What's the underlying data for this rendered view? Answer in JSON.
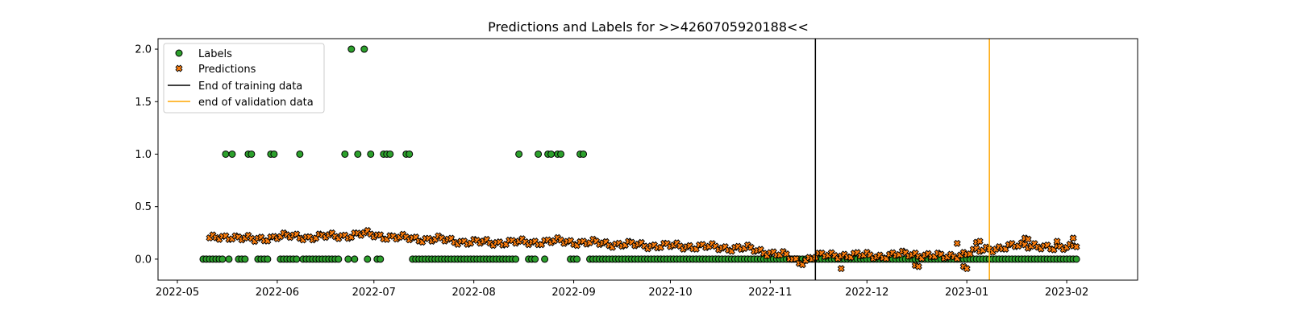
{
  "chart_data": {
    "type": "scatter",
    "title": "Predictions and Labels for >>4260705920188<<",
    "xlabel": "",
    "ylabel": "",
    "x_domain": [
      "2022-04-25",
      "2023-02-23"
    ],
    "ylim": [
      -0.2,
      2.1
    ],
    "x_ticks": [
      "2022-05",
      "2022-06",
      "2022-07",
      "2022-08",
      "2022-09",
      "2022-10",
      "2022-11",
      "2022-12",
      "2023-01",
      "2023-02"
    ],
    "x_tick_dates": [
      "2022-05-01",
      "2022-06-01",
      "2022-07-01",
      "2022-08-01",
      "2022-09-01",
      "2022-10-01",
      "2022-11-01",
      "2022-12-01",
      "2023-01-01",
      "2023-02-01"
    ],
    "y_ticks": [
      "0.0",
      "0.5",
      "1.0",
      "1.5",
      "2.0"
    ],
    "y_tick_values": [
      0.0,
      0.5,
      1.0,
      1.5,
      2.0
    ],
    "grid": false,
    "legend_position": "top-left",
    "colors": {
      "labels_fill": "#2ca02c",
      "predictions_fill": "#ff7f0e",
      "edge": "#000000",
      "training_line": "#000000",
      "validation_line": "#ffa500"
    },
    "legend": [
      {
        "label": "Labels",
        "kind": "circle"
      },
      {
        "label": "Predictions",
        "kind": "cross"
      },
      {
        "label": "End of training data",
        "kind": "line",
        "color": "#000000"
      },
      {
        "label": "end of validation data",
        "kind": "line",
        "color": "#ffa500"
      }
    ],
    "vlines": [
      {
        "label": "End of training data",
        "date": "2022-11-15"
      },
      {
        "label": "end of validation data",
        "date": "2023-01-08"
      }
    ],
    "series": [
      {
        "name": "Labels",
        "marker": "circle",
        "date_range": [
          "2022-05-09",
          "2023-02-04"
        ],
        "default_value": 0,
        "exceptions": [
          {
            "date": "2022-05-16",
            "value": 1
          },
          {
            "date": "2022-05-17",
            "value": 0
          },
          {
            "date": "2022-05-18",
            "value": 1
          },
          {
            "date": "2022-05-19",
            "value": null
          },
          {
            "date": "2022-05-23",
            "value": 1
          },
          {
            "date": "2022-05-24",
            "value": 1
          },
          {
            "date": "2022-05-25",
            "value": null
          },
          {
            "date": "2022-05-30",
            "value": 1
          },
          {
            "date": "2022-05-31",
            "value": 1
          },
          {
            "date": "2022-06-08",
            "value": 1
          },
          {
            "date": "2022-06-22",
            "value": 1
          },
          {
            "date": "2022-06-24",
            "value": 2
          },
          {
            "date": "2022-06-26",
            "value": 1
          },
          {
            "date": "2022-06-28",
            "value": 2
          },
          {
            "date": "2022-06-30",
            "value": 1
          },
          {
            "date": "2022-07-04",
            "value": 1
          },
          {
            "date": "2022-07-05",
            "value": 1
          },
          {
            "date": "2022-07-06",
            "value": 1
          },
          {
            "date": "2022-07-11",
            "value": 1
          },
          {
            "date": "2022-07-12",
            "value": 1
          },
          {
            "date": "2022-08-15",
            "value": 1
          },
          {
            "date": "2022-08-21",
            "value": 1
          },
          {
            "date": "2022-08-24",
            "value": 1
          },
          {
            "date": "2022-08-25",
            "value": 1
          },
          {
            "date": "2022-08-27",
            "value": 1
          },
          {
            "date": "2022-08-28",
            "value": 1
          },
          {
            "date": "2022-09-03",
            "value": 1
          },
          {
            "date": "2022-09-04",
            "value": 1
          }
        ],
        "skip_dates": [
          "2022-05-19",
          "2022-05-25",
          "2022-06-01",
          "2022-06-21",
          "2022-06-27",
          "2022-07-01",
          "2022-07-07",
          "2022-07-08",
          "2022-07-09",
          "2022-07-10",
          "2022-08-16",
          "2022-08-17",
          "2022-08-22",
          "2022-08-26",
          "2022-08-29",
          "2022-08-30",
          "2022-09-05"
        ]
      },
      {
        "name": "Predictions",
        "marker": "cross",
        "date_range": [
          "2022-05-11",
          "2023-02-04"
        ],
        "anchors": [
          [
            "2022-05-11",
            0.19
          ],
          [
            "2022-05-18",
            0.22
          ],
          [
            "2022-05-25",
            0.18
          ],
          [
            "2022-06-01",
            0.22
          ],
          [
            "2022-06-10",
            0.21
          ],
          [
            "2022-06-20",
            0.22
          ],
          [
            "2022-06-28",
            0.24
          ],
          [
            "2022-07-10",
            0.2
          ],
          [
            "2022-07-20",
            0.19
          ],
          [
            "2022-08-01",
            0.16
          ],
          [
            "2022-08-15",
            0.16
          ],
          [
            "2022-08-28",
            0.17
          ],
          [
            "2022-09-10",
            0.15
          ],
          [
            "2022-09-25",
            0.13
          ],
          [
            "2022-10-10",
            0.12
          ],
          [
            "2022-10-25",
            0.1
          ],
          [
            "2022-11-05",
            0.04
          ],
          [
            "2022-11-10",
            -0.03
          ],
          [
            "2022-11-15",
            0.03
          ],
          [
            "2022-11-25",
            0.04
          ],
          [
            "2022-12-05",
            0.03
          ],
          [
            "2022-12-15",
            0.05
          ],
          [
            "2022-12-25",
            0.02
          ],
          [
            "2023-01-02",
            0.06
          ],
          [
            "2023-01-08",
            0.1
          ],
          [
            "2023-01-15",
            0.12
          ],
          [
            "2023-01-22",
            0.14
          ],
          [
            "2023-01-28",
            0.09
          ],
          [
            "2023-02-04",
            0.15
          ]
        ],
        "extra_points": [
          [
            "2022-11-23",
            -0.09
          ],
          [
            "2022-12-16",
            -0.06
          ],
          [
            "2022-12-17",
            -0.07
          ],
          [
            "2022-12-29",
            0.15
          ],
          [
            "2022-12-31",
            -0.07
          ],
          [
            "2023-01-01",
            -0.09
          ],
          [
            "2023-01-04",
            0.16
          ],
          [
            "2023-01-05",
            0.17
          ],
          [
            "2023-01-19",
            0.2
          ],
          [
            "2023-01-20",
            0.19
          ],
          [
            "2023-01-29",
            0.17
          ],
          [
            "2023-02-03",
            0.2
          ]
        ]
      }
    ]
  }
}
